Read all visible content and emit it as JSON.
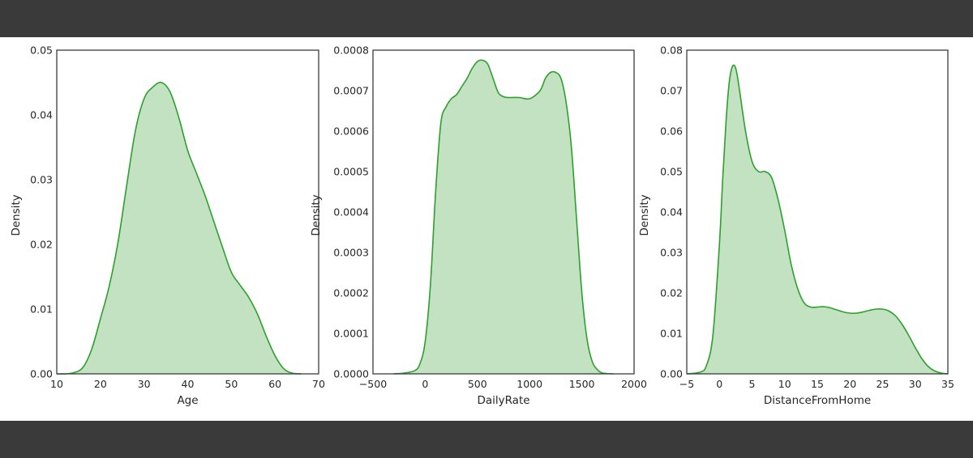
{
  "colors": {
    "page_bg": "#3a3a3a",
    "plot_bg": "#ffffff",
    "line": "#2ca02c",
    "fill": "#c2e2c2",
    "frame": "#3c3c3c"
  },
  "chart_data": [
    {
      "type": "area",
      "xlabel": "Age",
      "ylabel": "Density",
      "xlim": [
        10,
        70
      ],
      "ylim": [
        0,
        0.05
      ],
      "xticks": [
        10,
        20,
        30,
        40,
        50,
        60,
        70
      ],
      "xtick_labels": [
        "10",
        "20",
        "30",
        "40",
        "50",
        "60",
        "70"
      ],
      "yticks": [
        0,
        0.01,
        0.02,
        0.03,
        0.04,
        0.05
      ],
      "ytick_labels": [
        "0.00",
        "0.01",
        "0.02",
        "0.03",
        "0.04",
        "0.05"
      ],
      "grid": false,
      "x": [
        10,
        12,
        14,
        16,
        18,
        20,
        22,
        24,
        26,
        28,
        30,
        32,
        34,
        36,
        38,
        40,
        42,
        44,
        46,
        48,
        50,
        52,
        54,
        56,
        58,
        60,
        62,
        64,
        66
      ],
      "y": [
        0,
        0,
        0.0002,
        0.001,
        0.0038,
        0.0085,
        0.0135,
        0.0202,
        0.029,
        0.0375,
        0.0425,
        0.0443,
        0.045,
        0.0435,
        0.0395,
        0.0345,
        0.031,
        0.0275,
        0.0235,
        0.0195,
        0.0157,
        0.0137,
        0.0118,
        0.0092,
        0.0058,
        0.0028,
        0.0008,
        0.0001,
        0
      ]
    },
    {
      "type": "area",
      "xlabel": "DailyRate",
      "ylabel": "Density",
      "xlim": [
        -500,
        2000
      ],
      "ylim": [
        0,
        0.0008
      ],
      "xticks": [
        -500,
        0,
        500,
        1000,
        1500,
        2000
      ],
      "xtick_labels": [
        "−500",
        "0",
        "500",
        "1000",
        "1500",
        "2000"
      ],
      "yticks": [
        0,
        0.0001,
        0.0002,
        0.0003,
        0.0004,
        0.0005,
        0.0006,
        0.0007,
        0.0008
      ],
      "ytick_labels": [
        "0.0000",
        "0.0001",
        "0.0002",
        "0.0003",
        "0.0004",
        "0.0005",
        "0.0006",
        "0.0007",
        "0.0008"
      ],
      "grid": false,
      "x": [
        -300,
        -200,
        -100,
        -50,
        0,
        50,
        100,
        150,
        200,
        250,
        300,
        350,
        400,
        450,
        500,
        550,
        600,
        650,
        700,
        750,
        800,
        900,
        1000,
        1100,
        1150,
        1200,
        1250,
        1300,
        1350,
        1400,
        1450,
        1500,
        1550,
        1600,
        1650,
        1700,
        1800
      ],
      "y": [
        0,
        2e-06,
        8e-06,
        2.5e-05,
        8e-05,
        0.00022,
        0.00045,
        0.00062,
        0.00066,
        0.00068,
        0.00069,
        0.00071,
        0.00073,
        0.000755,
        0.000772,
        0.000775,
        0.000765,
        0.00073,
        0.000695,
        0.000685,
        0.000683,
        0.000683,
        0.00068,
        0.0007,
        0.00073,
        0.000745,
        0.000745,
        0.00073,
        0.00067,
        0.00056,
        0.00038,
        0.0002,
        8.5e-05,
        3e-05,
        1e-05,
        2e-06,
        0
      ]
    },
    {
      "type": "area",
      "xlabel": "DistanceFromHome",
      "ylabel": "Density",
      "xlim": [
        -5,
        35
      ],
      "ylim": [
        0,
        0.08
      ],
      "xticks": [
        -5,
        0,
        5,
        10,
        15,
        20,
        25,
        30,
        35
      ],
      "xtick_labels": [
        "−5",
        "0",
        "5",
        "10",
        "15",
        "20",
        "25",
        "30",
        "35"
      ],
      "yticks": [
        0,
        0.01,
        0.02,
        0.03,
        0.04,
        0.05,
        0.06,
        0.07,
        0.08
      ],
      "ytick_labels": [
        "0.00",
        "0.01",
        "0.02",
        "0.03",
        "0.04",
        "0.05",
        "0.06",
        "0.07",
        "0.08"
      ],
      "grid": false,
      "x": [
        -5,
        -3,
        -2,
        -1,
        0,
        0.5,
        1,
        1.5,
        2,
        2.5,
        3,
        4,
        5,
        6,
        7,
        8,
        9,
        10,
        11,
        12,
        13,
        14,
        15,
        16,
        17,
        18,
        19,
        20,
        21,
        22,
        23,
        24,
        25,
        26,
        27,
        28,
        29,
        30,
        31,
        32,
        33,
        34,
        35
      ],
      "y": [
        0,
        0.0004,
        0.002,
        0.0095,
        0.032,
        0.048,
        0.062,
        0.072,
        0.076,
        0.0755,
        0.071,
        0.06,
        0.0525,
        0.05,
        0.05,
        0.0485,
        0.043,
        0.0355,
        0.027,
        0.021,
        0.0175,
        0.0165,
        0.0165,
        0.0166,
        0.0163,
        0.0158,
        0.0153,
        0.015,
        0.015,
        0.0153,
        0.0157,
        0.016,
        0.016,
        0.0155,
        0.0143,
        0.0122,
        0.0095,
        0.0065,
        0.0038,
        0.0018,
        0.0007,
        0.0002,
        0
      ]
    }
  ]
}
